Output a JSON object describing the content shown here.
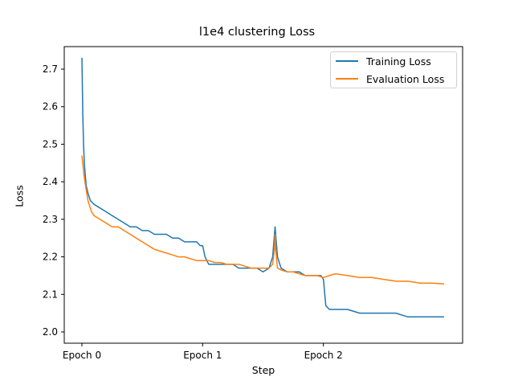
{
  "chart_data": {
    "type": "line",
    "title": "l1e4 clustering Loss",
    "xlabel": "Step",
    "ylabel": "Loss",
    "xlim": [
      0,
      3
    ],
    "ylim": [
      1.97,
      2.76
    ],
    "x_ticks": [
      {
        "value": 0,
        "label": "Epoch 0"
      },
      {
        "value": 1,
        "label": "Epoch 1"
      },
      {
        "value": 2,
        "label": "Epoch 2"
      }
    ],
    "y_ticks": [
      {
        "value": 2.0,
        "label": "2.0"
      },
      {
        "value": 2.1,
        "label": "2.1"
      },
      {
        "value": 2.2,
        "label": "2.2"
      },
      {
        "value": 2.3,
        "label": "2.3"
      },
      {
        "value": 2.4,
        "label": "2.4"
      },
      {
        "value": 2.5,
        "label": "2.5"
      },
      {
        "value": 2.6,
        "label": "2.6"
      },
      {
        "value": 2.7,
        "label": "2.7"
      }
    ],
    "grid": false,
    "legend_position": "top-right",
    "series": [
      {
        "name": "Training Loss",
        "color": "#1f77b4",
        "x": [
          0,
          0.007,
          0.013,
          0.02,
          0.027,
          0.035,
          0.05,
          0.07,
          0.1,
          0.15,
          0.2,
          0.25,
          0.3,
          0.35,
          0.4,
          0.45,
          0.5,
          0.55,
          0.6,
          0.65,
          0.7,
          0.75,
          0.8,
          0.85,
          0.9,
          0.95,
          0.98,
          1.0,
          1.02,
          1.05,
          1.1,
          1.15,
          1.2,
          1.25,
          1.3,
          1.35,
          1.4,
          1.45,
          1.5,
          1.55,
          1.58,
          1.6,
          1.62,
          1.65,
          1.7,
          1.75,
          1.8,
          1.85,
          1.9,
          1.95,
          1.98,
          2.0,
          2.02,
          2.05,
          2.1,
          2.2,
          2.3,
          2.4,
          2.5,
          2.6,
          2.7,
          2.8,
          2.9,
          3.0
        ],
        "y": [
          2.73,
          2.58,
          2.5,
          2.45,
          2.42,
          2.39,
          2.37,
          2.35,
          2.34,
          2.33,
          2.32,
          2.31,
          2.3,
          2.29,
          2.28,
          2.28,
          2.27,
          2.27,
          2.26,
          2.26,
          2.26,
          2.25,
          2.25,
          2.24,
          2.24,
          2.24,
          2.23,
          2.23,
          2.2,
          2.18,
          2.18,
          2.18,
          2.18,
          2.18,
          2.17,
          2.17,
          2.17,
          2.17,
          2.16,
          2.17,
          2.2,
          2.28,
          2.2,
          2.17,
          2.16,
          2.16,
          2.16,
          2.15,
          2.15,
          2.15,
          2.15,
          2.14,
          2.07,
          2.06,
          2.06,
          2.06,
          2.05,
          2.05,
          2.05,
          2.05,
          2.04,
          2.04,
          2.04,
          2.04
        ]
      },
      {
        "name": "Evaluation Loss",
        "color": "#ff7f0e",
        "x": [
          0,
          0.02,
          0.05,
          0.08,
          0.1,
          0.15,
          0.2,
          0.25,
          0.3,
          0.35,
          0.4,
          0.45,
          0.5,
          0.55,
          0.6,
          0.65,
          0.7,
          0.75,
          0.8,
          0.85,
          0.9,
          0.95,
          1.0,
          1.05,
          1.1,
          1.15,
          1.2,
          1.25,
          1.3,
          1.35,
          1.4,
          1.45,
          1.5,
          1.55,
          1.58,
          1.595,
          1.6,
          1.605,
          1.62,
          1.65,
          1.7,
          1.75,
          1.8,
          1.85,
          1.9,
          1.95,
          2.0,
          2.05,
          2.1,
          2.2,
          2.3,
          2.4,
          2.5,
          2.6,
          2.7,
          2.8,
          2.9,
          3.0
        ],
        "y": [
          2.47,
          2.41,
          2.35,
          2.32,
          2.31,
          2.3,
          2.29,
          2.28,
          2.28,
          2.27,
          2.26,
          2.25,
          2.24,
          2.23,
          2.22,
          2.215,
          2.21,
          2.205,
          2.2,
          2.2,
          2.195,
          2.19,
          2.19,
          2.19,
          2.185,
          2.185,
          2.18,
          2.18,
          2.18,
          2.175,
          2.17,
          2.17,
          2.17,
          2.17,
          2.18,
          2.22,
          2.26,
          2.22,
          2.17,
          2.165,
          2.16,
          2.16,
          2.155,
          2.15,
          2.15,
          2.15,
          2.145,
          2.15,
          2.155,
          2.15,
          2.145,
          2.145,
          2.14,
          2.135,
          2.135,
          2.13,
          2.13,
          2.128
        ]
      }
    ]
  }
}
